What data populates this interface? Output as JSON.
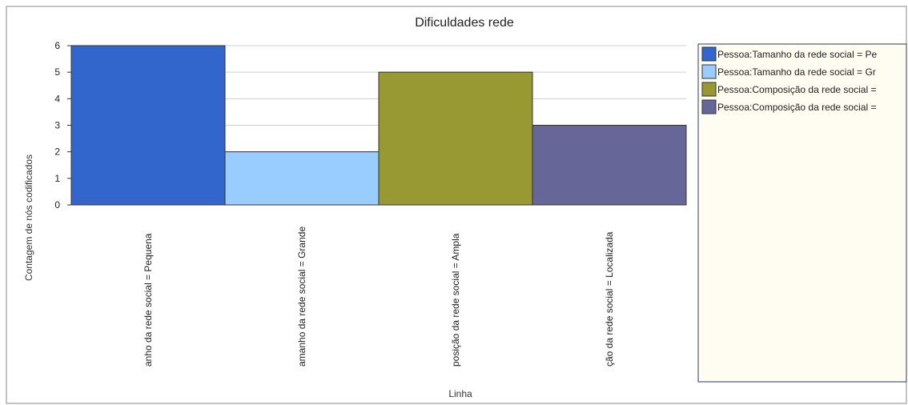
{
  "chart_data": {
    "type": "bar",
    "title": "Dificuldades rede",
    "xlabel": "Linha",
    "ylabel": "Contagem de nós codificados",
    "ylim": [
      0,
      6
    ],
    "yticks": [
      0,
      1,
      2,
      3,
      4,
      5,
      6
    ],
    "grid": true,
    "legend_position": "right",
    "categories": [
      "Pessoa:Tamanho da rede social = Pequena",
      "Pessoa:Tamanho da rede social = Grande",
      "Pessoa:Composição da rede social = Ampla",
      "Pessoa:Composição da rede social = Localizada"
    ],
    "visible_category_labels": [
      "anho da rede social = Pequena",
      "amanho da rede social = Grande",
      "posição da rede social = Ampla",
      "ção da rede social = Localizada"
    ],
    "values": [
      6,
      2,
      5,
      3
    ],
    "colors": [
      "#3366cc",
      "#99ccff",
      "#999933",
      "#666699"
    ],
    "legend_entries": [
      "Pessoa:Tamanho da rede social = Pe",
      "Pessoa:Tamanho da rede social = Gr",
      "Pessoa:Composição da rede social =",
      "Pessoa:Composição da rede social ="
    ]
  }
}
